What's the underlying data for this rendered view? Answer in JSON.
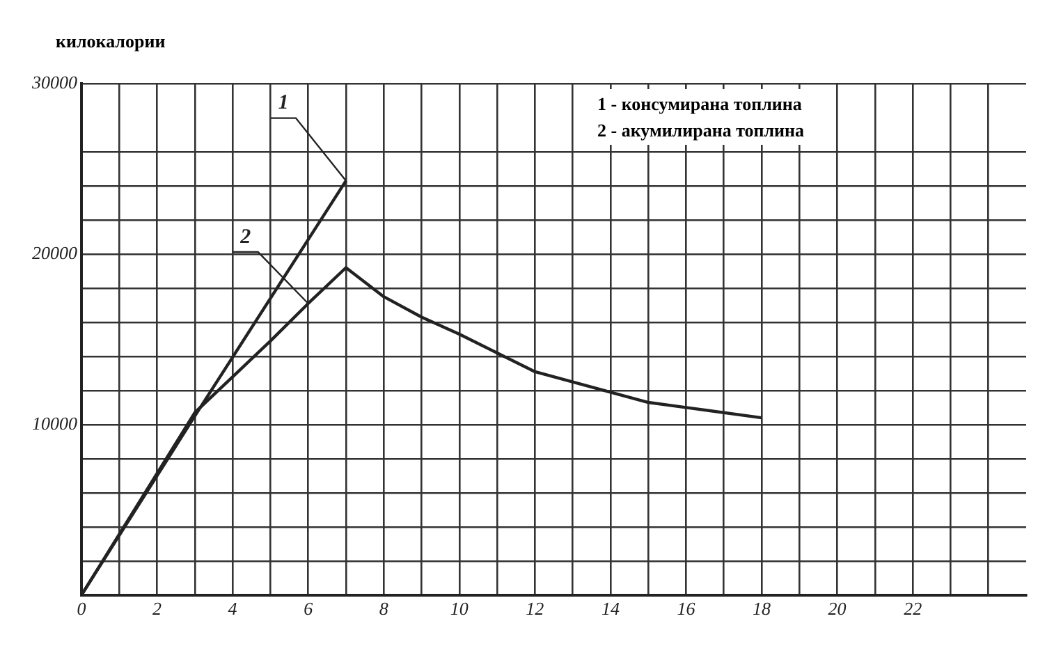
{
  "chart_data": {
    "type": "line",
    "ylabel": "килокалории",
    "series": [
      {
        "name": "1",
        "color": "#222222",
        "x": [
          0,
          3,
          7
        ],
        "values": [
          0,
          10500,
          24300
        ]
      },
      {
        "name": "2",
        "color": "#222222",
        "x": [
          0,
          3,
          4,
          5,
          6,
          7,
          8,
          9,
          10,
          12,
          13,
          14,
          15,
          16,
          18
        ],
        "values": [
          0,
          10700,
          12800,
          14900,
          17100,
          19200,
          17500,
          16300,
          15300,
          13100,
          12500,
          11900,
          11300,
          11000,
          10400
        ]
      }
    ],
    "annotations": [
      "1 - консумирана топлина",
      "2 - акумилирана топлина"
    ],
    "xlim": [
      0,
      25
    ],
    "xticks": [
      0,
      {
        "value": 1,
        "label": null
      },
      2,
      {
        "value": 3,
        "label": null
      },
      4,
      {
        "value": 5,
        "label": null
      },
      6,
      {
        "value": 7,
        "label": null
      },
      8,
      {
        "value": 9,
        "label": null
      },
      10,
      {
        "value": 11,
        "label": null
      },
      12,
      {
        "value": 13,
        "label": null
      },
      14,
      {
        "value": 15,
        "label": null
      },
      16,
      {
        "value": 17,
        "label": null
      },
      18,
      {
        "value": 19,
        "label": null
      },
      20,
      {
        "value": 21,
        "label": null
      },
      22,
      {
        "value": 23,
        "label": null
      },
      {
        "value": 24,
        "label": null
      }
    ],
    "ylim": [
      0,
      30000
    ],
    "yticks": [
      {
        "value": 2000,
        "label": null
      },
      {
        "value": 4000,
        "label": null
      },
      {
        "value": 6000,
        "label": null
      },
      {
        "value": 8000,
        "label": null
      },
      10000,
      {
        "value": 12000,
        "label": null
      },
      {
        "value": 14000,
        "label": null
      },
      {
        "value": 16000,
        "label": null
      },
      {
        "value": 18000,
        "label": null
      },
      20000,
      {
        "value": 22000,
        "label": null
      },
      {
        "value": 24000,
        "label": null
      },
      {
        "value": 26000,
        "label": null
      },
      30000
    ],
    "grid": true,
    "marker": "none",
    "line_style": "solid"
  }
}
